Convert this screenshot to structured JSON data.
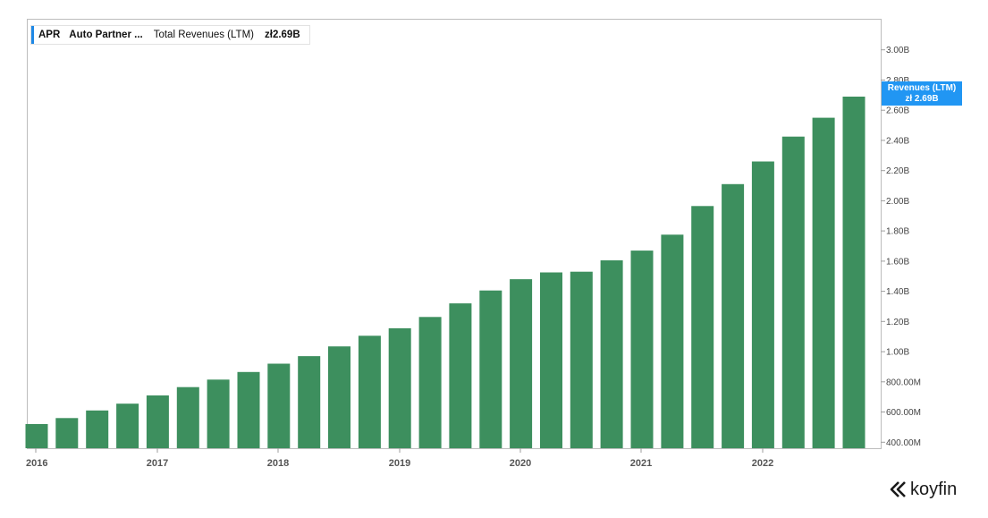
{
  "legend": {
    "ticker": "APR",
    "company": "Auto Partner ...",
    "metric": "Total Revenues (LTM)",
    "value": "zł2.69B"
  },
  "badge": {
    "line1": "Revenues (LTM)",
    "line2": "zł 2.69B"
  },
  "brand": {
    "name": "koyfin"
  },
  "colors": {
    "bar": "#3d8f5e",
    "accent": "#1e88e5",
    "badge": "#2196f3"
  },
  "chart_data": {
    "type": "bar",
    "title": "",
    "xlabel": "",
    "ylabel": "",
    "ylim": [
      360000000,
      3200000000
    ],
    "yticks": [
      {
        "value": 400000000,
        "label": "400.00M"
      },
      {
        "value": 600000000,
        "label": "600.00M"
      },
      {
        "value": 800000000,
        "label": "800.00M"
      },
      {
        "value": 1000000000,
        "label": "1.00B"
      },
      {
        "value": 1200000000,
        "label": "1.20B"
      },
      {
        "value": 1400000000,
        "label": "1.40B"
      },
      {
        "value": 1600000000,
        "label": "1.60B"
      },
      {
        "value": 1800000000,
        "label": "1.80B"
      },
      {
        "value": 2000000000,
        "label": "2.00B"
      },
      {
        "value": 2200000000,
        "label": "2.20B"
      },
      {
        "value": 2400000000,
        "label": "2.40B"
      },
      {
        "value": 2600000000,
        "label": "2.60B"
      },
      {
        "value": 2800000000,
        "label": "2.80B"
      },
      {
        "value": 3000000000,
        "label": "3.00B"
      }
    ],
    "year_labels": [
      "2016",
      "2017",
      "2018",
      "2019",
      "2020",
      "2021",
      "2022"
    ],
    "categories": [
      "2016-Q1",
      "2016-Q2",
      "2016-Q3",
      "2016-Q4",
      "2017-Q1",
      "2017-Q2",
      "2017-Q3",
      "2017-Q4",
      "2018-Q1",
      "2018-Q2",
      "2018-Q3",
      "2018-Q4",
      "2019-Q1",
      "2019-Q2",
      "2019-Q3",
      "2019-Q4",
      "2020-Q1",
      "2020-Q2",
      "2020-Q3",
      "2020-Q4",
      "2021-Q1",
      "2021-Q2",
      "2021-Q3",
      "2021-Q4",
      "2022-Q1",
      "2022-Q2",
      "2022-Q3",
      "2022-Q4"
    ],
    "series": [
      {
        "values": [
          520000000,
          560000000,
          610000000,
          655000000,
          710000000,
          765000000,
          815000000,
          865000000,
          920000000,
          970000000,
          1035000000,
          1105000000,
          1155000000,
          1230000000,
          1320000000,
          1405000000,
          1480000000,
          1525000000,
          1530000000,
          1605000000,
          1670000000,
          1775000000,
          1965000000,
          2110000000,
          2260000000,
          2425000000,
          2550000000,
          2690000000
        ]
      }
    ],
    "grid": false,
    "legend_position": "top-left"
  }
}
